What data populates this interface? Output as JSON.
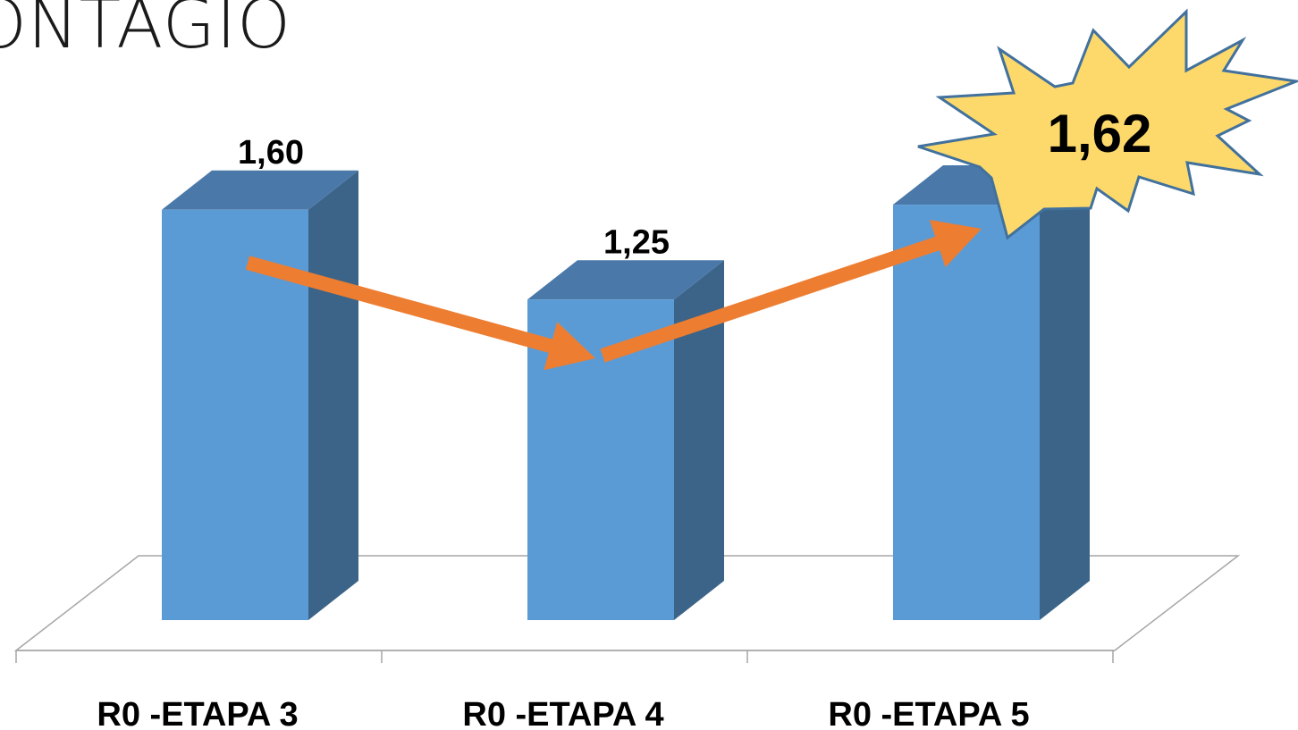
{
  "slide": {
    "title": "ONTAGIO"
  },
  "chart_data": {
    "type": "bar",
    "categories": [
      "R0 -ETAPA 3",
      "R0 -ETAPA 4",
      "R0 -ETAPA 5"
    ],
    "values": [
      1.6,
      1.25,
      1.62
    ],
    "data_labels": [
      "1,60",
      "1,25",
      "1,62"
    ],
    "title": "",
    "xlabel": "",
    "ylabel": "",
    "ylim": [
      0,
      1.8
    ],
    "grid": false,
    "legend": "none",
    "style": "3d-column",
    "highlight": {
      "category": "R0 -ETAPA 5",
      "label": "1,62",
      "shape": "starburst"
    },
    "trend_arrows": [
      {
        "from": "R0 -ETAPA 3",
        "to": "R0 -ETAPA 4"
      },
      {
        "from": "R0 -ETAPA 4",
        "to": "R0 -ETAPA 5"
      }
    ],
    "colors": {
      "bar_front": "#5B9BD5",
      "bar_top": "#4A78A8",
      "bar_side": "#3B6488",
      "arrow": "#ED7D31",
      "star_fill": "#FDD96B",
      "star_stroke": "#41719C",
      "floor": "#A6A6A6",
      "text": "#000000"
    }
  }
}
